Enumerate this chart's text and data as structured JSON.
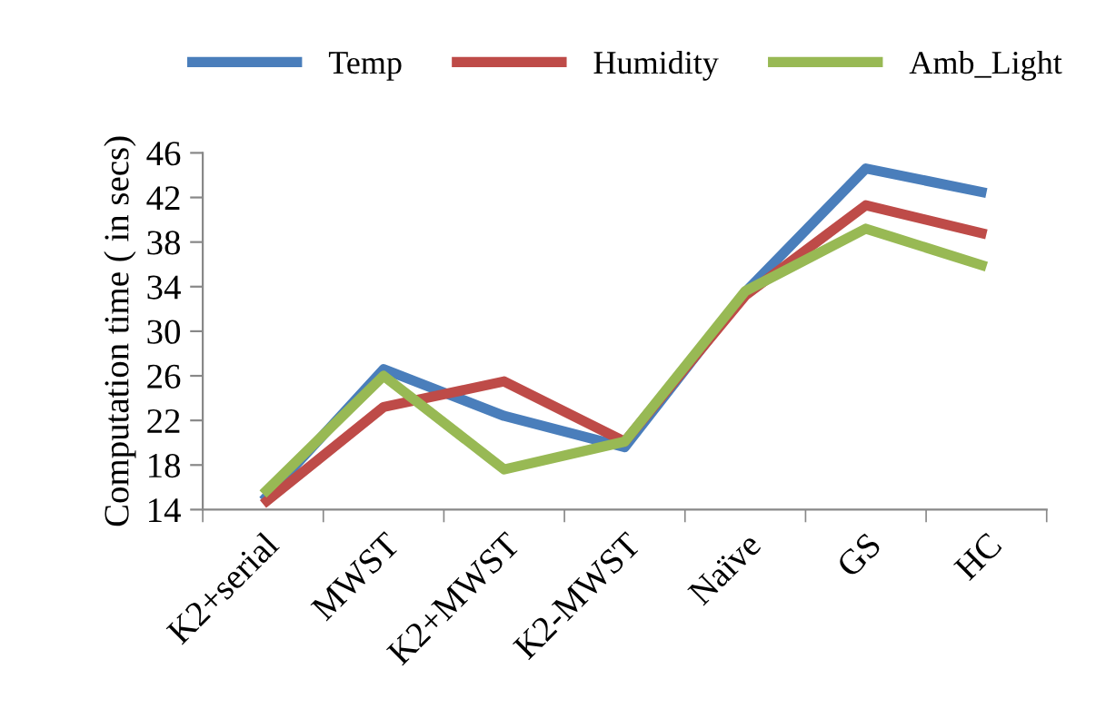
{
  "chart_data": {
    "type": "line",
    "ylabel": "Computation time ( in secs)",
    "categories": [
      "K2+serial",
      "MWST",
      "K2+MWST",
      "K2-MWST",
      "Naïve",
      "GS",
      "HC"
    ],
    "series": [
      {
        "name": "Temp",
        "color": "#4a7ebb",
        "values": [
          14.8,
          26.6,
          22.4,
          19.6,
          33.5,
          44.6,
          42.4
        ]
      },
      {
        "name": "Humidity",
        "color": "#be4b48",
        "values": [
          14.5,
          23.2,
          25.5,
          20.1,
          33.2,
          41.3,
          38.7
        ]
      },
      {
        "name": "Amb_Light",
        "color": "#98b954",
        "values": [
          15.4,
          26.0,
          17.6,
          20.1,
          33.6,
          39.2,
          35.8
        ]
      }
    ],
    "ylim": [
      14,
      46
    ],
    "yticks": [
      14,
      18,
      22,
      26,
      30,
      34,
      38,
      42,
      46
    ],
    "grid": false,
    "legend": "top",
    "marker": "none",
    "line_style": "solid"
  }
}
